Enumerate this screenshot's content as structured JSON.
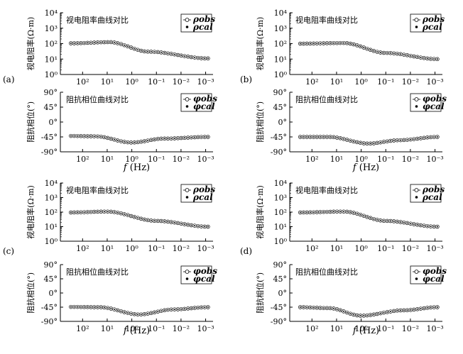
{
  "labels": {
    "panel_labels": [
      "(a)",
      "(b)",
      "(c)",
      "(d)"
    ],
    "xlabel_italic": "f",
    "xlabel_unit": "(Hz)"
  },
  "chart_data": [
    {
      "panel": "(a)",
      "type": "line+scatter",
      "title": "视电阻率曲线对比",
      "ylabel": "视电阻率(Ω·m)",
      "yscale": "log",
      "ylim": [
        1,
        10000
      ],
      "yticks": [
        "10⁰",
        "10¹",
        "10²",
        "10³",
        "10⁴"
      ],
      "xscale": "log-reversed",
      "xlim": [
        800,
        0.0005
      ],
      "xticks": [
        "10²",
        "10¹",
        "10⁰",
        "10⁻¹",
        "10⁻²",
        "10⁻³"
      ],
      "legend": [
        "ρobs",
        "ρcal"
      ],
      "legend_position": "top-right",
      "grid": false,
      "x": [
        300,
        8,
        0.2,
        0.0008
      ],
      "series": [
        {
          "values": [
            105,
            125,
            30,
            11
          ]
        }
      ]
    },
    {
      "panel": "(a)",
      "type": "line+scatter",
      "title": "阻抗相位曲线对比",
      "ylabel": "阻抗相位(°)",
      "ylim": [
        -90,
        90
      ],
      "yticks": [
        "90°",
        "45°",
        "0°",
        "-45°",
        "-90°"
      ],
      "xscale": "log-reversed",
      "xlim": [
        800,
        0.0005
      ],
      "xticks": [
        "10²",
        "10¹",
        "10⁰",
        "10⁻¹",
        "10⁻²",
        "10⁻³"
      ],
      "legend": [
        "φobs",
        "φcal"
      ],
      "legend_position": "top-right",
      "grid": false,
      "x": [
        300,
        30,
        1,
        0.05,
        0.0008
      ],
      "series": [
        {
          "values": [
            -42,
            -43,
            -62,
            -50,
            -45
          ]
        }
      ]
    },
    {
      "panel": "(b)",
      "type": "line+scatter",
      "title": "视电阻率曲线对比",
      "ylabel": "视电阻率(Ω·m)",
      "yscale": "log",
      "ylim": [
        1,
        10000
      ],
      "yticks": [
        "10⁰",
        "10¹",
        "10²",
        "10³",
        "10⁴"
      ],
      "xscale": "log-reversed",
      "xlim": [
        800,
        0.0005
      ],
      "xticks": [
        "10²",
        "10¹",
        "10⁰",
        "10⁻¹",
        "10⁻²",
        "10⁻³"
      ],
      "legend": [
        "ρobs",
        "ρcal"
      ],
      "legend_position": "top-right",
      "grid": false,
      "x": [
        300,
        5,
        0.1,
        0.0008
      ],
      "series": [
        {
          "values": [
            100,
            110,
            25,
            10
          ]
        }
      ]
    },
    {
      "panel": "(b)",
      "type": "line+scatter",
      "title": "阻抗相位曲线对比",
      "ylabel": "阻抗相位(°)",
      "ylim": [
        -90,
        90
      ],
      "yticks": [
        "90°",
        "45°",
        "0°",
        "-45°",
        "-90°"
      ],
      "xscale": "log-reversed",
      "xlim": [
        800,
        0.0005
      ],
      "xticks": [
        "10²",
        "10¹",
        "10⁰",
        "10⁻¹",
        "10⁻²",
        "10⁻³"
      ],
      "legend": [
        "φobs",
        "φcal"
      ],
      "legend_position": "top-right",
      "grid": false,
      "x": [
        300,
        20,
        0.5,
        0.03,
        0.0008
      ],
      "series": [
        {
          "values": [
            -45,
            -45,
            -65,
            -55,
            -45
          ]
        }
      ]
    },
    {
      "panel": "(c)",
      "type": "line+scatter",
      "title": "视电阻率曲线对比",
      "ylabel": "视电阻率(Ω·m)",
      "yscale": "log",
      "ylim": [
        1,
        10000
      ],
      "yticks": [
        "10⁰",
        "10¹",
        "10²",
        "10³",
        "10⁴"
      ],
      "xscale": "log-reversed",
      "xlim": [
        800,
        0.0005
      ],
      "xticks": [
        "10²",
        "10¹",
        "10⁰",
        "10⁻¹",
        "10⁻²",
        "10⁻³"
      ],
      "legend": [
        "ρobs",
        "ρcal"
      ],
      "legend_position": "top-right",
      "grid": false,
      "x": [
        300,
        10,
        0.1,
        0.0008
      ],
      "series": [
        {
          "values": [
            95,
            110,
            25,
            10
          ]
        }
      ]
    },
    {
      "panel": "(c)",
      "type": "line+scatter",
      "title": "阻抗相位曲线对比",
      "ylabel": "阻抗相位(°)",
      "ylim": [
        -90,
        90
      ],
      "yticks": [
        "90°",
        "45°",
        "0°",
        "-45°",
        "-90°"
      ],
      "xscale": "log-reversed",
      "xlim": [
        800,
        0.0005
      ],
      "xticks": [
        "10²",
        "10¹",
        "10⁰",
        "10⁻¹",
        "10⁻²",
        "10⁻³"
      ],
      "legend": [
        "φobs",
        "φcal"
      ],
      "legend_position": "top-right",
      "grid": false,
      "x": [
        300,
        20,
        0.5,
        0.02,
        0.0008
      ],
      "series": [
        {
          "values": [
            -44,
            -45,
            -68,
            -52,
            -45
          ]
        }
      ]
    },
    {
      "panel": "(d)",
      "type": "line+scatter",
      "title": "视电阻率曲线对比",
      "ylabel": "视电阻率(Ω·m)",
      "yscale": "log",
      "ylim": [
        1,
        10000
      ],
      "yticks": [
        "10⁰",
        "10¹",
        "10²",
        "10³",
        "10⁴"
      ],
      "xscale": "log-reversed",
      "xlim": [
        800,
        0.0005
      ],
      "xticks": [
        "10²",
        "10¹",
        "10⁰",
        "10⁻¹",
        "10⁻²",
        "10⁻³"
      ],
      "legend": [
        "ρobs",
        "ρcal"
      ],
      "legend_position": "top-right",
      "grid": false,
      "x": [
        300,
        5,
        0.1,
        0.0008
      ],
      "series": [
        {
          "values": [
            95,
            110,
            25,
            10
          ]
        }
      ]
    },
    {
      "panel": "(d)",
      "type": "line+scatter",
      "title": "阻抗相位曲线对比",
      "ylabel": "阻抗相位(°)",
      "ylim": [
        -90,
        90
      ],
      "yticks": [
        "90°",
        "45°",
        "0°",
        "-45°",
        "-90°"
      ],
      "xscale": "log-reversed",
      "xlim": [
        800,
        0.0005
      ],
      "xticks": [
        "10²",
        "10¹",
        "10⁰",
        "10⁻¹",
        "10⁻²",
        "10⁻³"
      ],
      "legend": [
        "φobs",
        "φcal"
      ],
      "legend_position": "top-right",
      "grid": false,
      "x": [
        300,
        20,
        1,
        0.02,
        0.0008
      ],
      "series": [
        {
          "values": [
            -45,
            -48,
            -72,
            -55,
            -45
          ]
        }
      ]
    }
  ]
}
